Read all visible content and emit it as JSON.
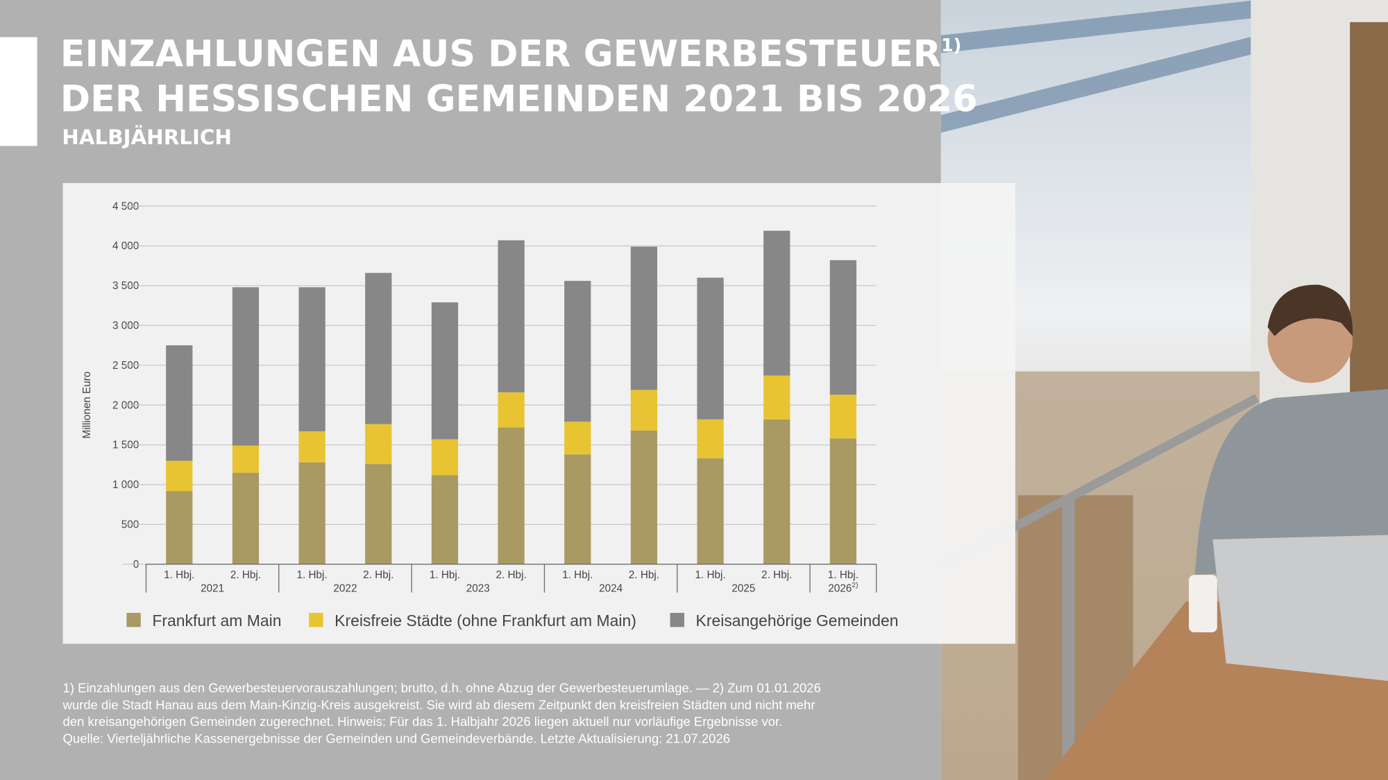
{
  "chart_data": {
    "type": "stacked_bar",
    "title": [
      "EINZAHLUNGEN AUS DER GEWERBESTEUER",
      "DER HESSISCHEN GEMEINDEN 2021 BIS 2026"
    ],
    "title_note": "1)",
    "subtitle": "HALBJÄHRLICH",
    "y_label": "Millionen Euro",
    "categories": [
      "1. Hbj.",
      "2. Hbj.",
      "1. Hbj.",
      "2. Hbj.",
      "1. Hbj.",
      "2. Hbj.",
      "1. Hbj.",
      "2. Hbj.",
      "1. Hbj.",
      "2. Hbj.",
      "1. Hbj."
    ],
    "groups": [
      {
        "label": "2021"
      },
      {
        "label": "2022"
      },
      {
        "label": "2023"
      },
      {
        "label": "2024"
      },
      {
        "label": "2025"
      },
      {
        "label": "2026",
        "note": "2)"
      }
    ],
    "series": [
      {
        "name": "Frankfurt am Main",
        "color": "#a89a62",
        "values": [
          920,
          1150,
          1280,
          1260,
          1120,
          1720,
          1380,
          1680,
          1330,
          1820,
          1580
        ]
      },
      {
        "name": "Kreisfreie Städte (ohne Frankfurt am Main)",
        "color": "#e8c432",
        "values": [
          380,
          340,
          390,
          500,
          450,
          440,
          410,
          510,
          490,
          550,
          550
        ]
      },
      {
        "name": "Kreisangehörige Gemeinden",
        "color": "#878787",
        "values": [
          1450,
          1990,
          1810,
          1900,
          1720,
          1910,
          1770,
          1800,
          1780,
          1820,
          1690
        ]
      }
    ],
    "ylim": [
      0,
      4500
    ],
    "yticks": [
      0,
      500,
      {
        "value": 1000,
        "label": "1 000"
      },
      {
        "value": 1500,
        "label": "1 500"
      },
      {
        "value": 2000,
        "label": "2 000"
      },
      {
        "value": 2500,
        "label": "2 500"
      },
      {
        "value": 3000,
        "label": "3 000"
      },
      {
        "value": 3500,
        "label": "3 500"
      },
      {
        "value": 4000,
        "label": "4 000"
      },
      {
        "value": 4500,
        "label": "4 500"
      }
    ],
    "grid": true,
    "footnotes": [
      "1) Einzahlungen aus den Gewerbesteuervorauszahlungen; brutto, d.h. ohne Abzug der Gewerbesteuerumlage. — 2) Zum 01.01.2026",
      "wurde die Stadt Hanau aus dem Main-Kinzig-Kreis ausgekreist. Sie wird ab diesem Zeitpunkt den kreisfreien Städten und nicht mehr",
      "den kreisangehörigen Gemeinden zugerechnet. Hinweis: Für das 1. Halbjahr 2026 liegen aktuell nur vorläufige Ergebnisse vor.",
      "Quelle: Vierteljährliche Kassenergebnisse der Gemeinden und Gemeindeverbände. Letzte Aktualisierung: 21.07.2026"
    ]
  }
}
